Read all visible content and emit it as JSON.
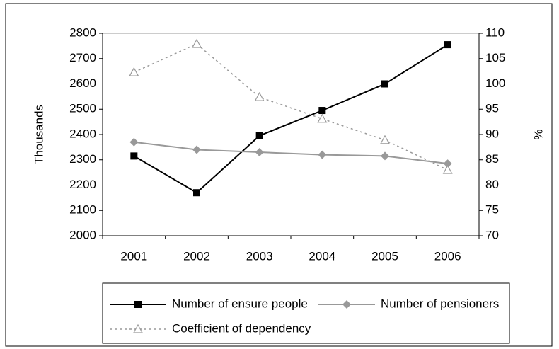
{
  "chart_data": {
    "type": "line",
    "categories": [
      "2001",
      "2002",
      "2003",
      "2004",
      "2005",
      "2006"
    ],
    "y_label": "Thousands",
    "y2_label": "%",
    "ylim": [
      2000,
      2800
    ],
    "yticks": [
      2000,
      2100,
      2200,
      2300,
      2400,
      2500,
      2600,
      2700,
      2800
    ],
    "y2lim": [
      70,
      110
    ],
    "y2ticks": [
      70,
      75,
      80,
      85,
      90,
      95,
      100,
      105,
      110
    ],
    "legend": "bottom",
    "series": [
      {
        "name": "Number of ensure people",
        "color": "#000000",
        "marker": "square",
        "dash": false,
        "values": [
          2315,
          2170,
          2395,
          2495,
          2600,
          2755
        ]
      },
      {
        "name": "Number of pensioners",
        "color": "#999999",
        "marker": "diamond",
        "dash": false,
        "values": [
          2370,
          2340,
          2330,
          2320,
          2315,
          2285
        ]
      },
      {
        "name": "Coefficient of dependency",
        "color": "#999999",
        "marker": "triangle",
        "dash": true,
        "axis": "y2",
        "values": [
          102.3,
          107.9,
          97.4,
          93.1,
          88.9,
          83
        ]
      }
    ]
  }
}
